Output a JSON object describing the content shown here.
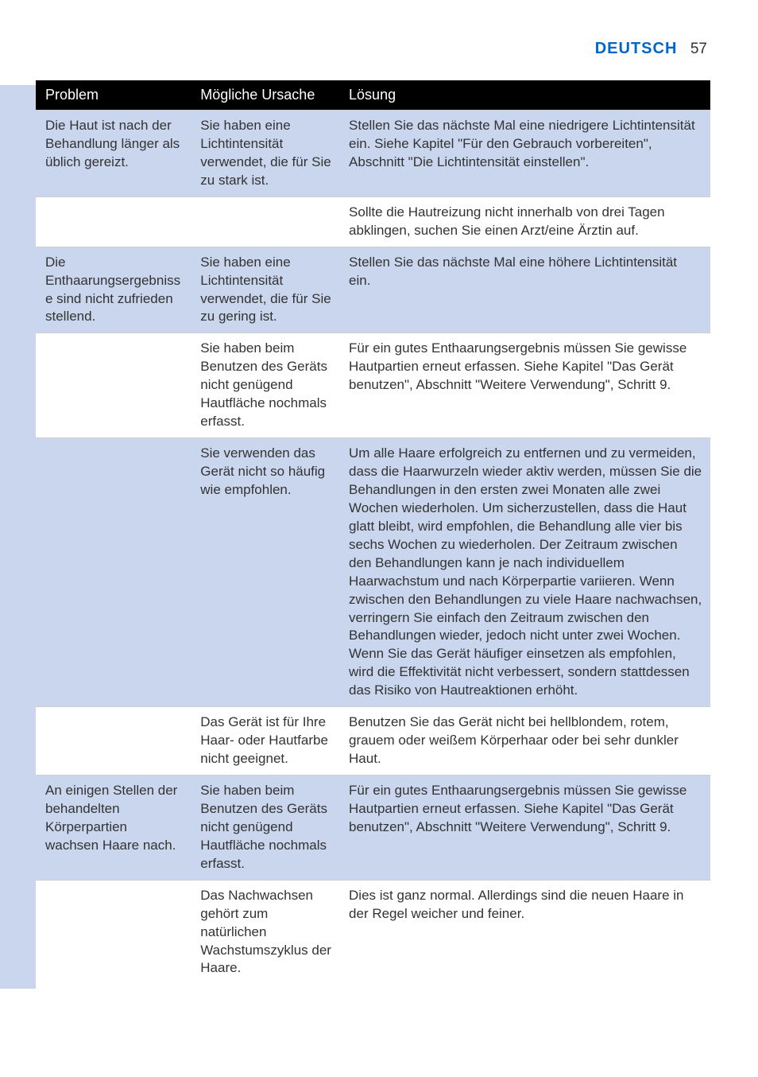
{
  "header": {
    "language": "DEUTSCH",
    "page_number": "57"
  },
  "colors": {
    "accent_blue": "#0066cc",
    "row_alt_bg": "#c9d6ed",
    "header_bg": "#000000",
    "header_fg": "#ffffff",
    "text": "#333333",
    "border": "#cfcfcf"
  },
  "table": {
    "columns": [
      "Problem",
      "Mögliche Ursache",
      "Lösung"
    ],
    "rows": [
      {
        "alt": true,
        "problem": "Die Haut ist nach der Behandlung länger als üblich gereizt.",
        "cause": "Sie haben eine Lichtintensität verwendet, die für Sie zu stark ist.",
        "solution": "Stellen Sie das nächste Mal eine niedrigere Lichtintensität ein. Siehe Kapitel \"Für den Gebrauch vorbereiten\", Abschnitt \"Die Lichtintensität einstellen\"."
      },
      {
        "alt": false,
        "problem": "",
        "cause": "",
        "solution": "Sollte die Hautreizung nicht innerhalb von drei Tagen abklingen, suchen Sie einen Arzt/eine Ärztin auf."
      },
      {
        "alt": true,
        "problem": "Die Enthaarungsergebnisse sind nicht zufrieden stellend.",
        "cause": "Sie haben eine Lichtintensität verwendet, die für Sie zu gering ist.",
        "solution": "Stellen Sie das nächste Mal eine höhere Lichtintensität ein."
      },
      {
        "alt": false,
        "problem": "",
        "cause": "Sie haben beim Benutzen des Geräts nicht genügend Hautfläche nochmals erfasst.",
        "solution": "Für ein gutes Enthaarungsergebnis müssen Sie gewisse Hautpartien erneut erfassen. Siehe Kapitel \"Das Gerät benutzen\", Abschnitt \"Weitere Verwendung\", Schritt 9."
      },
      {
        "alt": true,
        "problem": "",
        "cause": "Sie verwenden das Gerät nicht so häufig wie empfohlen.",
        "solution": "Um alle Haare erfolgreich zu entfernen und zu vermeiden, dass die Haarwurzeln wieder aktiv werden, müssen Sie die Behandlungen in den ersten zwei Monaten alle zwei Wochen wiederholen. Um sicherzustellen, dass die Haut glatt bleibt, wird empfohlen, die Behandlung alle vier bis sechs Wochen zu wiederholen. Der Zeitraum zwischen den Behandlungen kann je nach individuellem Haarwachstum und nach Körperpartie variieren. Wenn zwischen den Behandlungen zu viele Haare nachwachsen, verringern Sie einfach den Zeitraum zwischen den Behandlungen wieder, jedoch nicht unter zwei Wochen. Wenn Sie das Gerät häufiger einsetzen als empfohlen, wird die Effektivität nicht verbessert, sondern stattdessen das Risiko von Hautreaktionen erhöht."
      },
      {
        "alt": false,
        "problem": "",
        "cause": "Das Gerät ist für Ihre Haar- oder Hautfarbe nicht geeignet.",
        "solution": "Benutzen Sie das Gerät nicht bei hellblondem, rotem, grauem oder weißem Körperhaar oder bei sehr dunkler Haut."
      },
      {
        "alt": true,
        "problem": "An einigen Stellen der behandelten Körperpartien wachsen Haare nach.",
        "cause": "Sie haben beim Benutzen des Geräts nicht genügend Hautfläche nochmals erfasst.",
        "solution": "Für ein gutes Enthaarungsergebnis müssen Sie gewisse Hautpartien erneut erfassen. Siehe Kapitel \"Das Gerät benutzen\", Abschnitt \"Weitere Verwendung\", Schritt 9."
      },
      {
        "alt": false,
        "problem": "",
        "cause": "Das Nachwachsen gehört zum natürlichen Wachstumszyklus der Haare.",
        "solution": "Dies ist ganz normal. Allerdings sind die neuen Haare in der Regel weicher und feiner."
      }
    ]
  }
}
